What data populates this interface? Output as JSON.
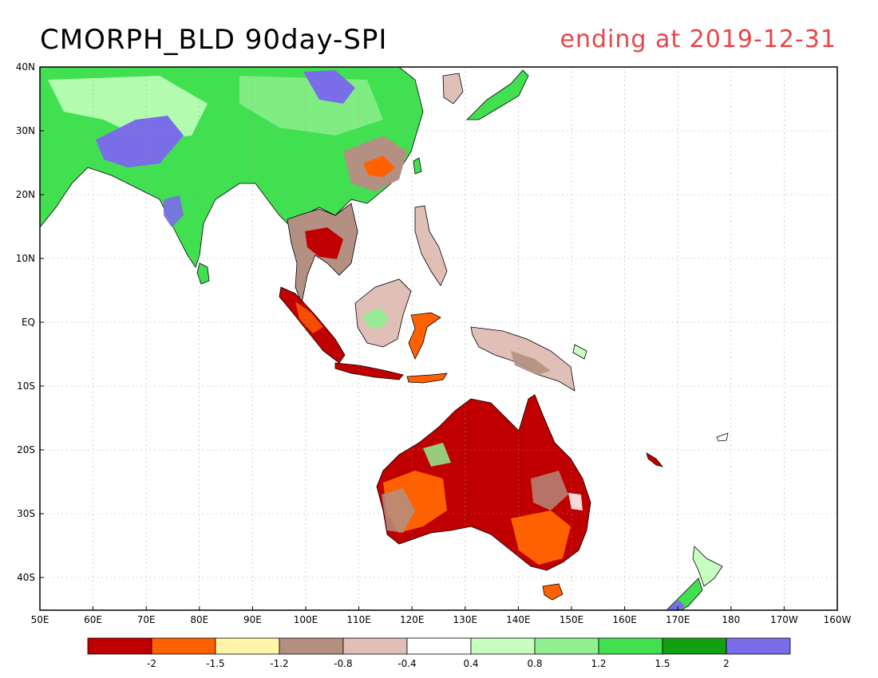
{
  "title": "CMORPH_BLD 90day-SPI",
  "subtitle": "ending at 2019-12-31",
  "lon_ticks": [
    "50E",
    "60E",
    "70E",
    "80E",
    "90E",
    "100E",
    "110E",
    "120E",
    "130E",
    "140E",
    "150E",
    "160E",
    "170E",
    "180",
    "170W",
    "160W"
  ],
  "lat_ticks": [
    "40N",
    "30N",
    "20N",
    "10N",
    "EQ",
    "10S",
    "20S",
    "30S",
    "40S"
  ],
  "legend": {
    "colors": [
      "#c00000",
      "#ff6000",
      "#fff5a8",
      "#b49082",
      "#e0c0b6",
      "#ffffff",
      "#c8ffc0",
      "#90f090",
      "#40e050",
      "#10a010",
      "#7a6ee8"
    ],
    "labels": [
      "-2",
      "-1.5",
      "-1.2",
      "-0.8",
      "-0.4",
      "0.4",
      "0.8",
      "1.2",
      "1.5",
      "2"
    ]
  },
  "colors": {
    "ocean": "#ffffff",
    "frame": "#000000",
    "grid": "#9a9a9a",
    "title": "#000000",
    "subtitle": "#e8464a"
  }
}
